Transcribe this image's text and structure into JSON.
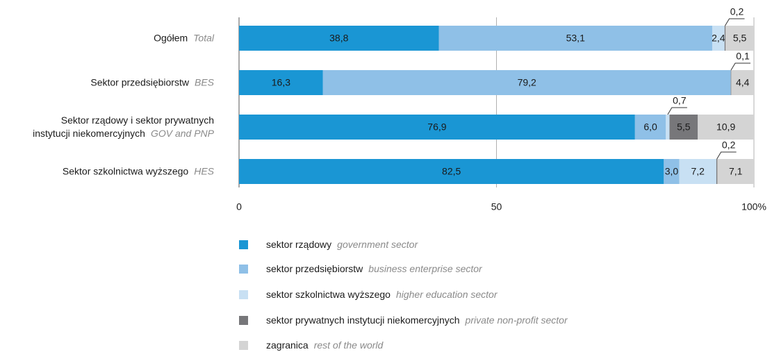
{
  "chart_data": {
    "type": "stacked_bar_horizontal",
    "categories": [
      "Ogółem",
      "Sektor przedsiębiorstw",
      "Sektor rządowy  i sektor  prywatnych\ninstytucji niekomercyjnych",
      "Sektor szkolnictwa wyższego"
    ],
    "categories_en": [
      "Total",
      "BES",
      "GOV and PNP",
      "HES"
    ],
    "series": [
      {
        "name": "sektor rządowy",
        "name_en": "government sector",
        "color": "#1a96d4",
        "values": [
          38.8,
          16.3,
          76.9,
          82.5
        ],
        "value_labels": [
          "38,8",
          "16,3",
          "76,9",
          "82,5"
        ]
      },
      {
        "name": "sektor przedsiębiorstw",
        "name_en": "business enterprise sector",
        "color": "#8fc0e7",
        "values": [
          53.1,
          79.2,
          6.0,
          3.0
        ],
        "value_labels": [
          "53,1",
          "79,2",
          "6,0",
          "3,0"
        ]
      },
      {
        "name": "sektor szkolnictwa wyższego",
        "name_en": "higher education sector",
        "color": "#c8e0f3",
        "values": [
          2.4,
          null,
          0.7,
          7.2
        ],
        "value_labels": [
          "2,4",
          null,
          "0,7",
          "7,2"
        ]
      },
      {
        "name": "sektor prywatnych instytucji niekomercyjnych",
        "name_en": "private non-profit sector",
        "color": "#77777a",
        "values": [
          0.2,
          0.1,
          5.5,
          0.2
        ],
        "value_labels": [
          "0,2",
          "0,1",
          "5,5",
          "0,2"
        ]
      },
      {
        "name": "zagranica",
        "name_en": "rest of the world",
        "color": "#d4d4d4",
        "values": [
          5.5,
          4.4,
          10.9,
          7.1
        ],
        "value_labels": [
          "5,5",
          "4,4",
          "10,9",
          "7,1"
        ]
      }
    ],
    "xlim": [
      0,
      100
    ],
    "xticks": [
      0,
      50,
      {
        "value": 100,
        "label": "100%"
      }
    ],
    "grid": true
  }
}
